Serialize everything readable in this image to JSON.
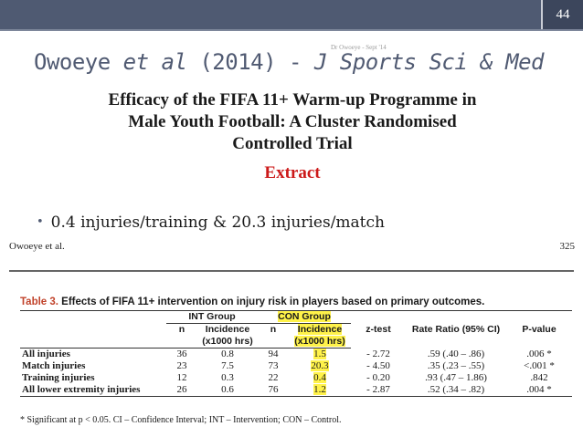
{
  "header": {
    "page_number": "44",
    "footer_text": "Dr Owoeye - Sept '14"
  },
  "slide": {
    "title_plain_1": "Owoeye ",
    "title_italic_1": "et al",
    "title_plain_2": " (2014) - ",
    "title_italic_2": "J Sports Sci & Med",
    "subtitle_1": "Efficacy of the FIFA 11+ Warm-up Programme in",
    "subtitle_2": "Male Youth Football: A Cluster Randomised",
    "subtitle_3": "Controlled Trial",
    "extract_label": "Extract",
    "bullet_text": "0.4 injuries/training & 20.3 injuries/match",
    "bullet_marker": "•"
  },
  "paper": {
    "running_head": "Owoeye et al.",
    "page": "325",
    "table_label": "Table 3.",
    "table_caption": " Effects of FIFA 11+ intervention on injury risk in players based on primary outcomes.",
    "group_headers": {
      "int": "INT Group",
      "con": "CON Group"
    },
    "col_headers": {
      "n_int": "n",
      "incidence_int": "Incidence",
      "incidence_int_unit": "(x1000 hrs)",
      "n_con": "n",
      "incidence_con": "Incidence",
      "incidence_con_unit": "(x1000 hrs)",
      "z": "z-test",
      "rr": "Rate Ratio (95% CI)",
      "p": "P-value"
    },
    "rows": [
      {
        "label": "All injuries",
        "n_int": "36",
        "inc_int": "0.8",
        "n_con": "94",
        "inc_con": "1.5",
        "z": "- 2.72",
        "rr": ".59 (.40 – .86)",
        "p": ".006 *"
      },
      {
        "label": "Match injuries",
        "n_int": "23",
        "inc_int": "7.5",
        "n_con": "73",
        "inc_con": "20.3",
        "z": "- 4.50",
        "rr": ".35 (.23 – .55)",
        "p": "<.001 *"
      },
      {
        "label": "Training injuries",
        "n_int": "12",
        "inc_int": "0.3",
        "n_con": "22",
        "inc_con": "0.4",
        "z": "- 0.20",
        "rr": ".93 (.47 – 1.86)",
        "p": ".842"
      },
      {
        "label": "All lower extremity injuries",
        "n_int": "26",
        "inc_int": "0.6",
        "n_con": "76",
        "inc_con": "1.2",
        "z": "- 2.87",
        "rr": ".52 (.34 – .82)",
        "p": ".004 *"
      }
    ],
    "footnote": "* Significant at p < 0.05. CI – Confidence Interval; INT – Intervention; CON – Control."
  },
  "colors": {
    "header_bar": "#4f5a72",
    "title": "#505a72",
    "extract": "#cc1a1a",
    "highlight": "#fff24a"
  }
}
